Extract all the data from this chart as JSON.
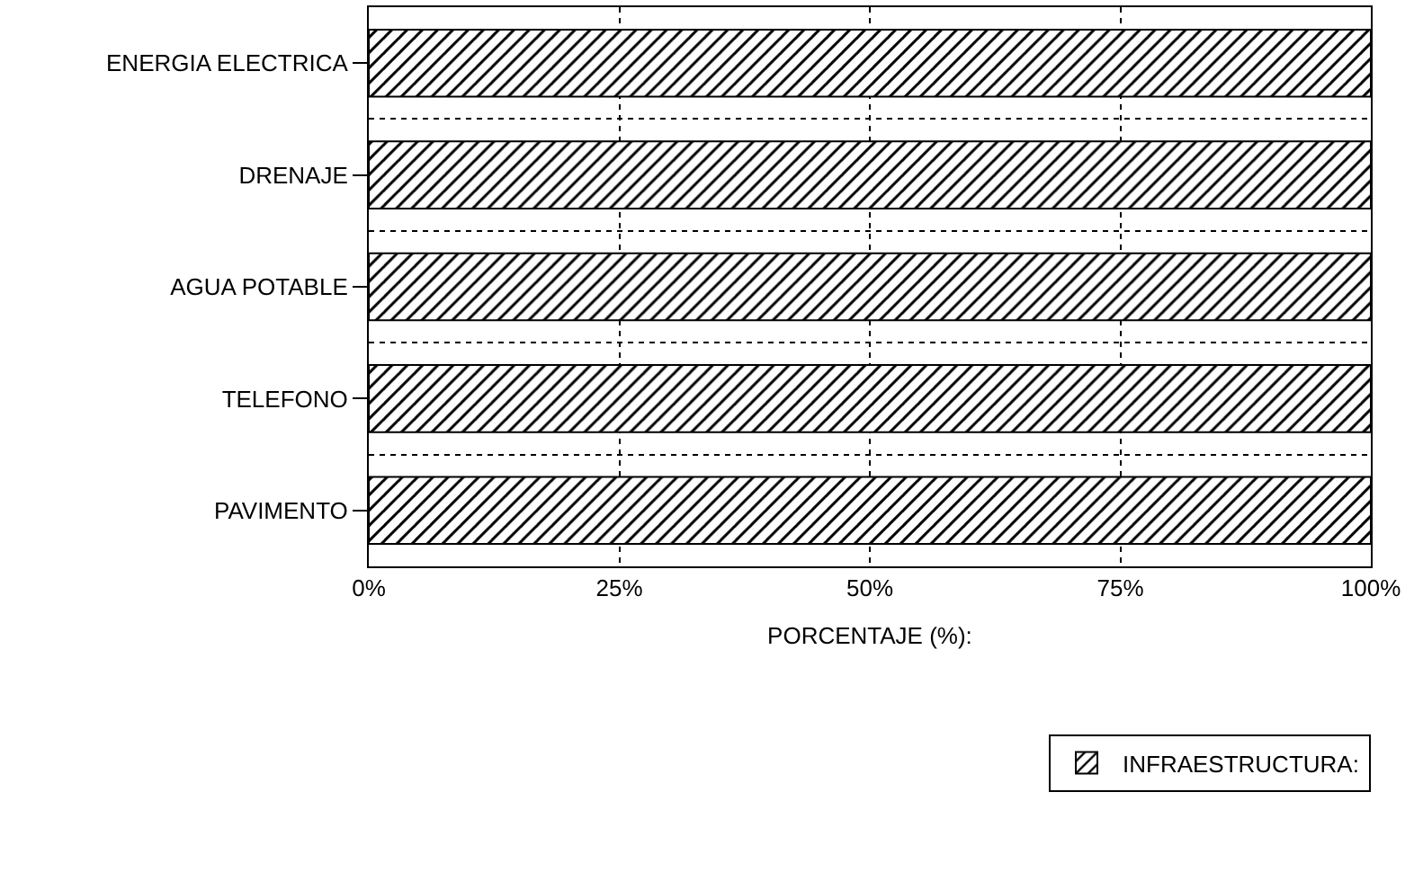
{
  "chart_data": {
    "type": "bar",
    "orientation": "horizontal",
    "categories": [
      "ENERGIA ELECTRICA",
      "DRENAJE",
      "AGUA POTABLE",
      "TELEFONO",
      "PAVIMENTO"
    ],
    "series": [
      {
        "name": "INFRAESTRUCTURA:",
        "color": "#000000",
        "values": [
          100,
          100,
          100,
          100,
          100
        ]
      }
    ],
    "xlabel": "PORCENTAJE (%):",
    "xlim": [
      0,
      100
    ],
    "xticks": [
      {
        "value": 0,
        "label": "0%"
      },
      {
        "value": 25,
        "label": "25%"
      },
      {
        "value": 50,
        "label": "50%"
      },
      {
        "value": 75,
        "label": "75%"
      },
      {
        "value": 100,
        "label": "100%"
      }
    ],
    "grid": true,
    "legend": "bottom right"
  }
}
